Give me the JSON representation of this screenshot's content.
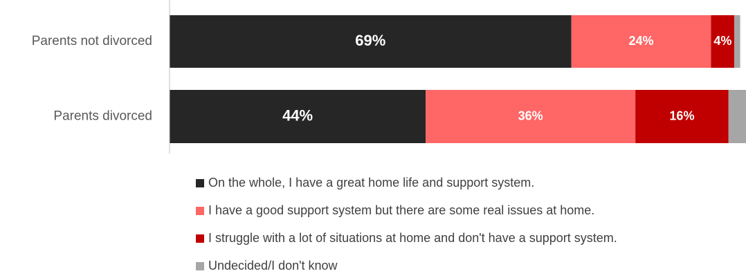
{
  "chart_data": {
    "type": "stacked_barh",
    "categories": [
      "Parents not divorced",
      "Parents divorced"
    ],
    "series": [
      {
        "name": "On the whole, I have a great home life and support system.",
        "color": "#262626",
        "values": [
          69,
          44
        ],
        "value_labels": [
          "69%",
          "44%"
        ]
      },
      {
        "name": "I have a good support system but there are some real issues at home.",
        "color": "#ff6666",
        "values": [
          24,
          36
        ],
        "value_labels": [
          "24%",
          "36%"
        ]
      },
      {
        "name": "I struggle with a lot of situations at home and don't have a support system.",
        "color": "#c00000",
        "values": [
          4,
          16
        ],
        "value_labels": [
          "4%",
          "16%"
        ]
      },
      {
        "name": "Undecided/I don't know",
        "color": "#a6a6a6",
        "values": [
          1,
          3
        ]
      }
    ],
    "xlim": [
      0,
      99
    ]
  }
}
